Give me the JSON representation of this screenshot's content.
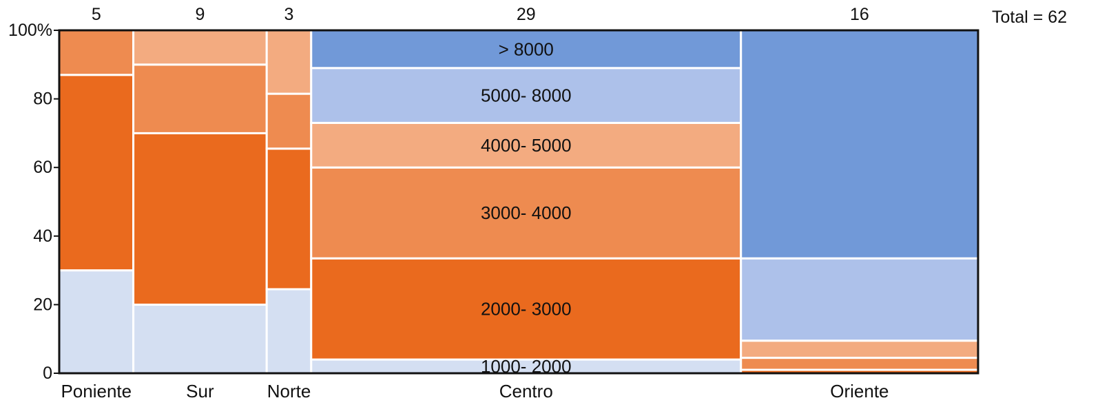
{
  "chart_data": {
    "type": "mosaic",
    "total_label": "Total = 62",
    "ylim": [
      0,
      100
    ],
    "yticks": [
      0,
      20,
      40,
      60,
      80
    ],
    "ytick_labels": [
      "0",
      "20",
      "40",
      "60",
      "80"
    ],
    "ytop_label": "100%",
    "categories": [
      "Poniente",
      "Sur",
      "Norte",
      "Centro",
      "Oriente"
    ],
    "counts": [
      5,
      9,
      3,
      29,
      16
    ],
    "segment_labels": [
      "1000- 2000",
      "2000- 3000",
      "3000- 4000",
      "4000- 5000",
      "5000- 8000",
      "> 8000"
    ],
    "segment_colors": [
      "#d4dff2",
      "#ea6a1e",
      "#ee8b50",
      "#f3ab80",
      "#adc1ea",
      "#7199d8"
    ],
    "series": [
      {
        "category": "Poniente",
        "segments": [
          {
            "label_index": 0,
            "value": 30
          },
          {
            "label_index": 1,
            "value": 57
          },
          {
            "label_index": 2,
            "value": 13
          }
        ]
      },
      {
        "category": "Sur",
        "segments": [
          {
            "label_index": 0,
            "value": 20
          },
          {
            "label_index": 1,
            "value": 50
          },
          {
            "label_index": 2,
            "value": 20
          },
          {
            "label_index": 3,
            "value": 10
          }
        ]
      },
      {
        "category": "Norte",
        "segments": [
          {
            "label_index": 0,
            "value": 24.5
          },
          {
            "label_index": 1,
            "value": 41
          },
          {
            "label_index": 2,
            "value": 16
          },
          {
            "label_index": 3,
            "value": 18.5
          }
        ]
      },
      {
        "category": "Centro",
        "show_labels": true,
        "segments": [
          {
            "label_index": 0,
            "value": 4
          },
          {
            "label_index": 1,
            "value": 29.5
          },
          {
            "label_index": 2,
            "value": 26.5
          },
          {
            "label_index": 3,
            "value": 13
          },
          {
            "label_index": 4,
            "value": 16
          },
          {
            "label_index": 5,
            "value": 11
          }
        ]
      },
      {
        "category": "Oriente",
        "segments": [
          {
            "label_index": 0,
            "value": 0
          },
          {
            "label_index": 1,
            "value": 1
          },
          {
            "label_index": 2,
            "value": 3.5
          },
          {
            "label_index": 3,
            "value": 5
          },
          {
            "label_index": 4,
            "value": 24
          },
          {
            "label_index": 5,
            "value": 66.5
          }
        ]
      }
    ]
  }
}
